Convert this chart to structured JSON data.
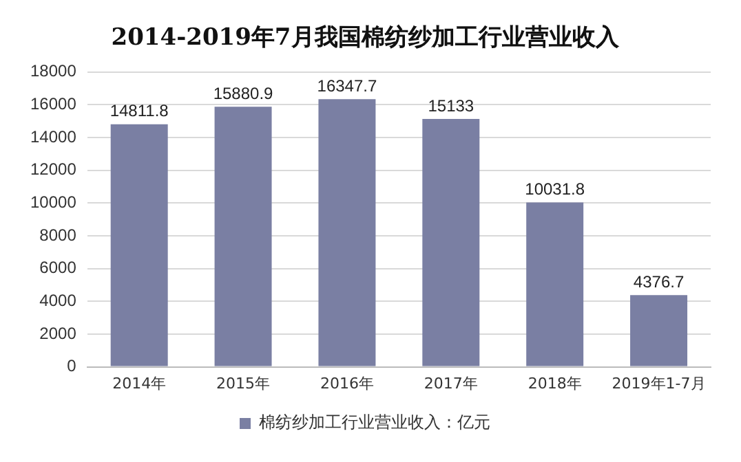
{
  "chart_data": {
    "type": "bar",
    "title": "2014-2019年7月我国棉纺纱加工行业营业收入",
    "categories": [
      "2014年",
      "2015年",
      "2016年",
      "2017年",
      "2018年",
      "2019年1-7月"
    ],
    "series": [
      {
        "name": "棉纺纱加工行业营业收入：亿元",
        "color": "#7a7fa3",
        "values": [
          14811.8,
          15880.9,
          16347.7,
          15133,
          10031.8,
          4376.7
        ]
      }
    ],
    "ylim": [
      0,
      18000
    ],
    "yticks": [
      0,
      2000,
      4000,
      6000,
      8000,
      10000,
      12000,
      14000,
      16000,
      18000
    ],
    "grid": "y",
    "legend": "bottom",
    "data_labels": true
  }
}
